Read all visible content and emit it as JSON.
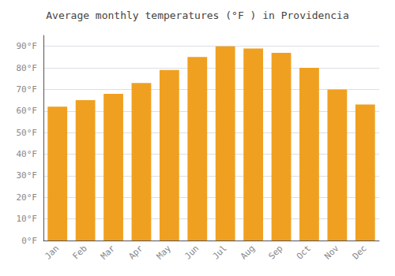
{
  "chart_data": {
    "type": "bar",
    "title": "Average monthly temperatures (°F ) in Providencia",
    "categories": [
      "Jan",
      "Feb",
      "Mar",
      "Apr",
      "May",
      "Jun",
      "Jul",
      "Aug",
      "Sep",
      "Oct",
      "Nov",
      "Dec"
    ],
    "values": [
      62,
      65,
      68,
      73,
      79,
      85,
      90,
      89,
      87,
      80,
      70,
      63
    ],
    "color": "#F0A020",
    "ylim": [
      0,
      95
    ],
    "yticks": [
      {
        "value": 0,
        "label": "0°F"
      },
      {
        "value": 10,
        "label": "10°F"
      },
      {
        "value": 20,
        "label": "20°F"
      },
      {
        "value": 30,
        "label": "30°F"
      },
      {
        "value": 40,
        "label": "40°F"
      },
      {
        "value": 50,
        "label": "50°F"
      },
      {
        "value": 60,
        "label": "60°F"
      },
      {
        "value": 70,
        "label": "70°F"
      },
      {
        "value": 80,
        "label": "80°F"
      },
      {
        "value": 90,
        "label": "90°F"
      }
    ],
    "grid": true
  }
}
